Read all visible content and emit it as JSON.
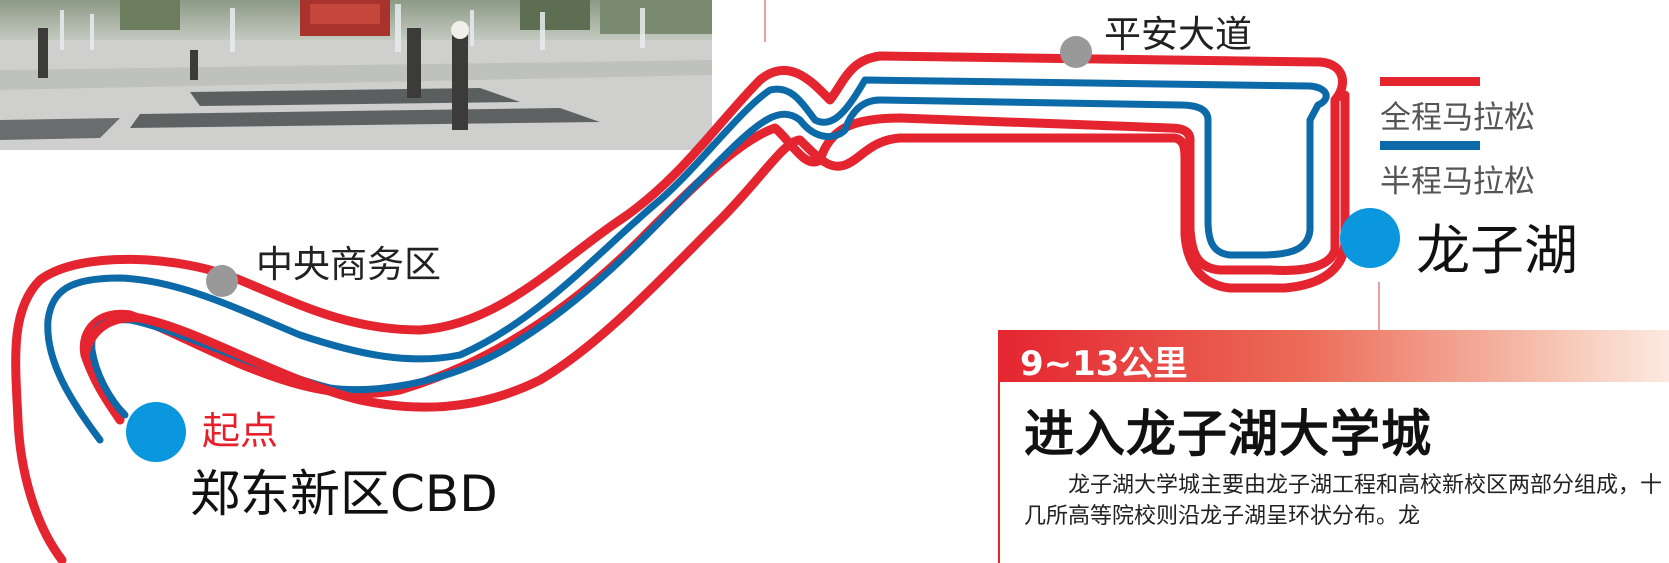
{
  "map": {
    "landmarks": [
      {
        "id": "cbd",
        "label": "中央商务区"
      },
      {
        "id": "pingan",
        "label": "平安大道"
      }
    ],
    "start": {
      "tag": "起点",
      "name": "郑东新区CBD"
    },
    "end": {
      "name": "龙子湖"
    },
    "legend": [
      {
        "label": "全程马拉松",
        "color": "#e42530"
      },
      {
        "label": "半程马拉松",
        "color": "#0d6aa8"
      }
    ],
    "colors": {
      "full_route": "#e42530",
      "half_route": "#0d6aa8",
      "start_marker": "#0a97dd",
      "landmark_marker": "#999999"
    }
  },
  "info": {
    "km": "9~13公里",
    "title": "进入龙子湖大学城",
    "body": "龙子湖大学城主要由龙子湖工程和高校新校区两部分组成，十几所高等院校则沿龙子湖呈环状分布。龙"
  },
  "photo": {
    "description_icon": "photo-plaza-fountain"
  }
}
